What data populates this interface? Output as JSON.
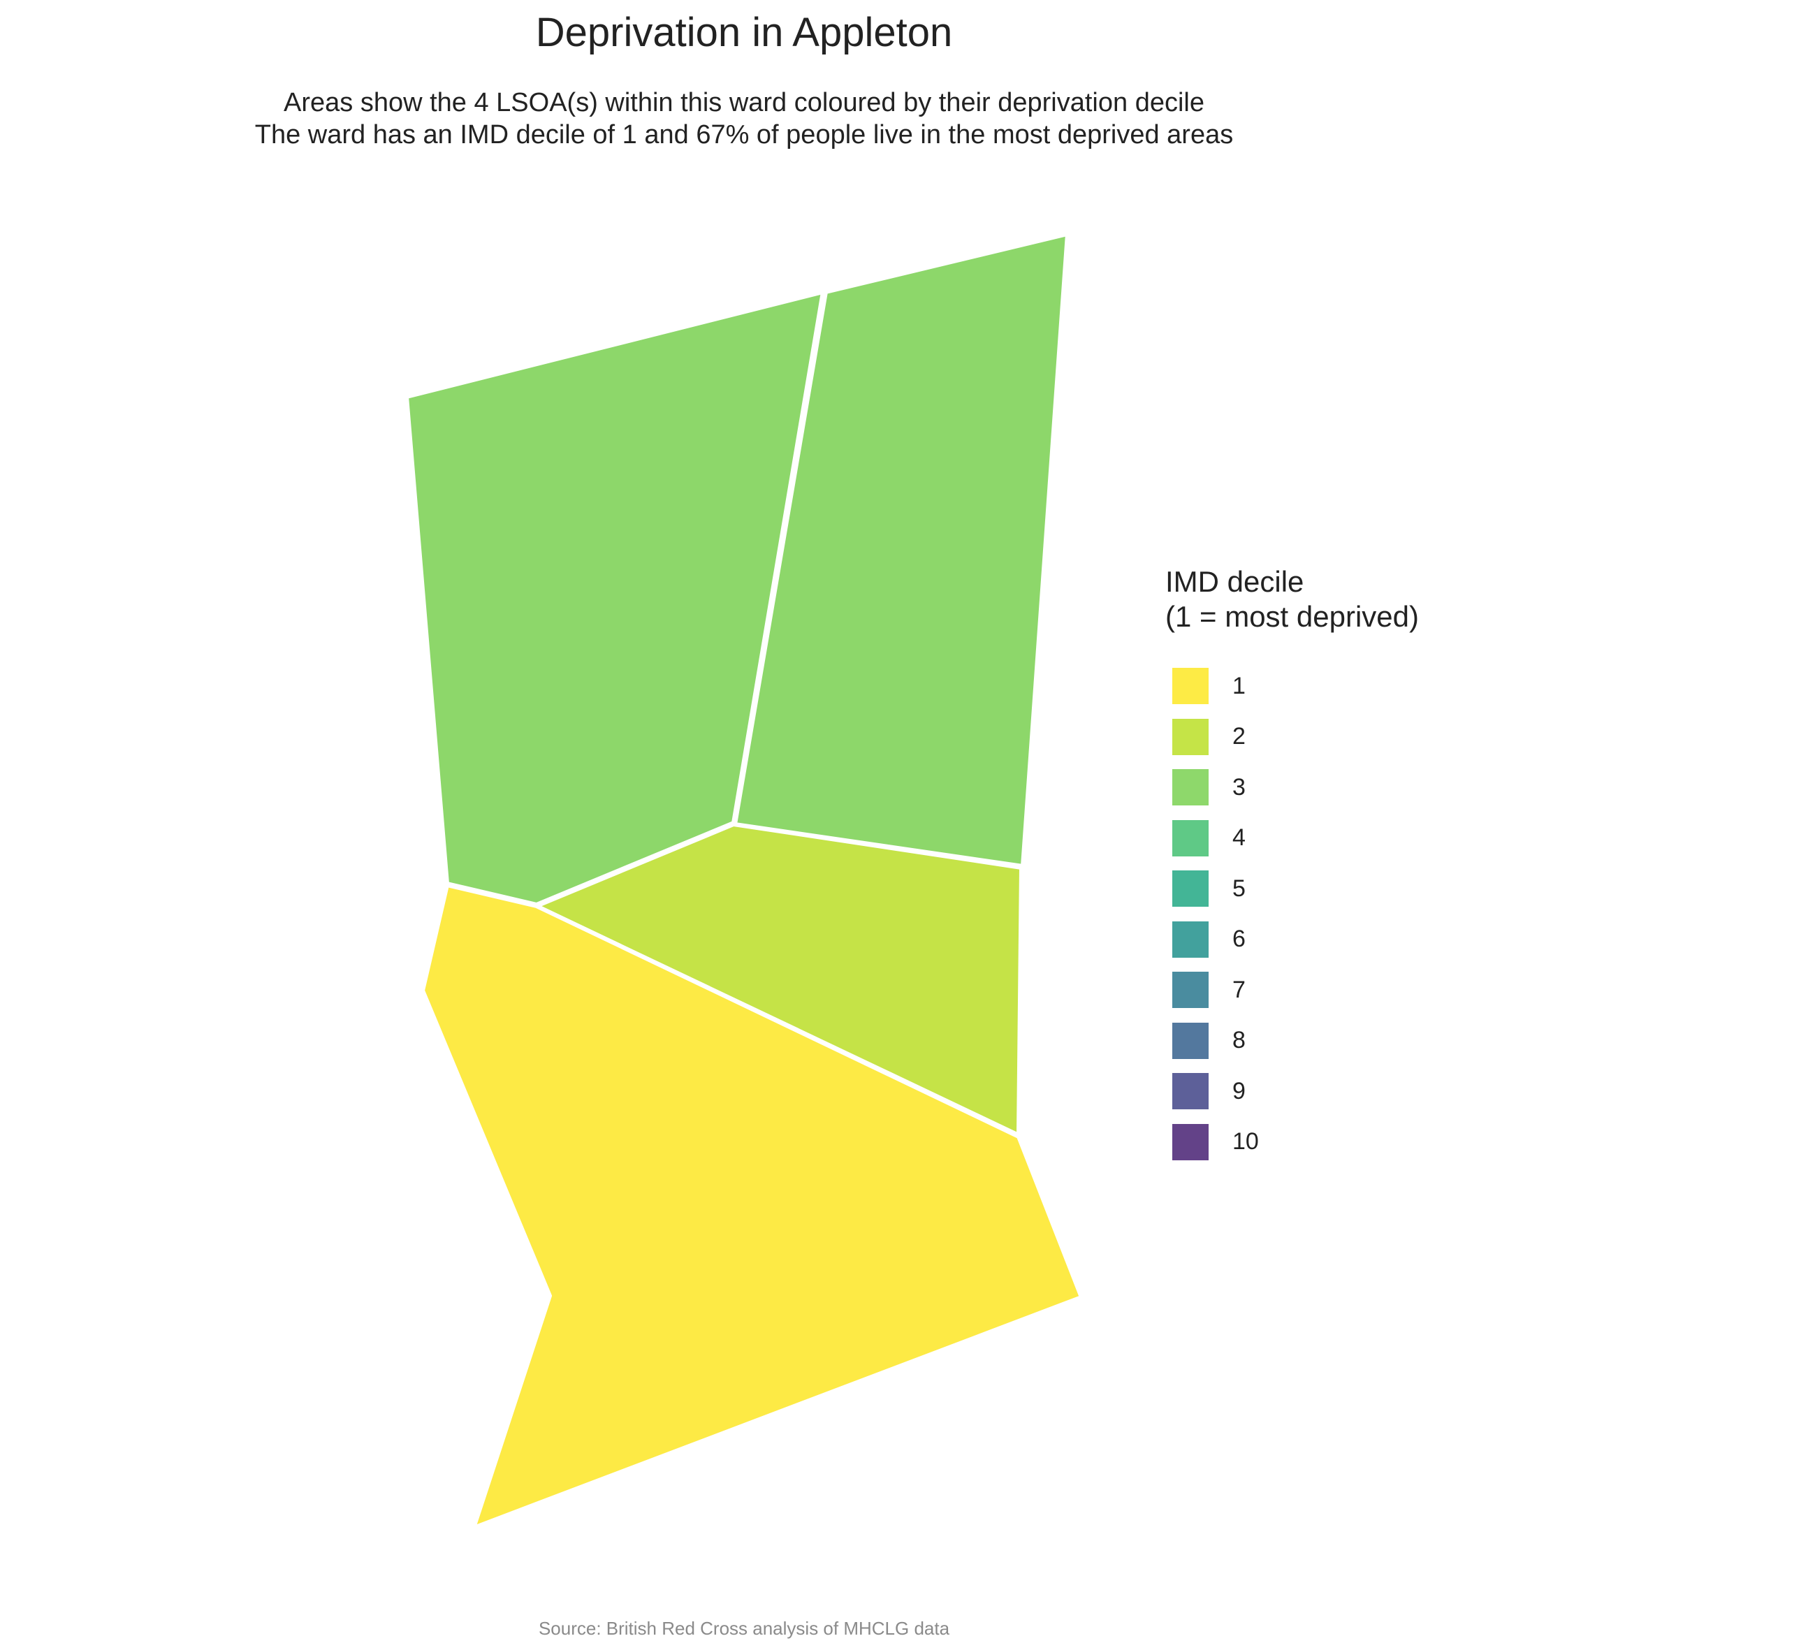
{
  "title": "Deprivation in Appleton",
  "subtitle_line1": "Areas show the 4 LSOA(s) within this ward coloured by their deprivation decile",
  "subtitle_line2": "The ward has an IMD decile of 1 and 67% of people live in the most deprived areas",
  "legend": {
    "title_line1": "IMD decile",
    "title_line2": "(1 = most deprived)",
    "items": [
      {
        "label": "1",
        "color": "#FDE725"
      },
      {
        "label": "2",
        "color": "#BBDF27"
      },
      {
        "label": "3",
        "color": "#7AD151"
      },
      {
        "label": "4",
        "color": "#43BF71"
      },
      {
        "label": "5",
        "color": "#22A884"
      },
      {
        "label": "6",
        "color": "#21908C"
      },
      {
        "label": "7",
        "color": "#2A788E"
      },
      {
        "label": "8",
        "color": "#35608D"
      },
      {
        "label": "9",
        "color": "#414487"
      },
      {
        "label": "10",
        "color": "#482173"
      }
    ]
  },
  "areas": [
    {
      "decile": 3,
      "color": "#7AD151"
    },
    {
      "decile": 3,
      "color": "#7AD151"
    },
    {
      "decile": 2,
      "color": "#BBDF27"
    },
    {
      "decile": 1,
      "color": "#FDE725"
    }
  ],
  "caption": "Source: British Red Cross analysis of MHCLG data"
}
